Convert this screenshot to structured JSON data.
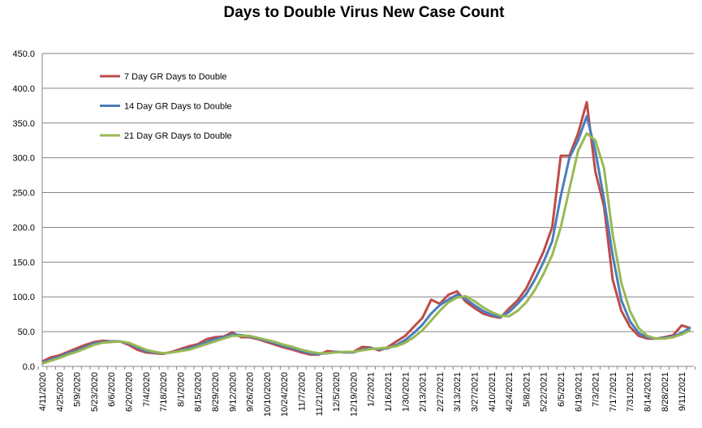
{
  "chart_data": {
    "type": "line",
    "title": "Days to Double Virus New Case Count",
    "xlabel": "",
    "ylabel": "",
    "ylim": [
      0,
      450
    ],
    "yticks": [
      "0.0",
      "50.0",
      "100.0",
      "150.0",
      "200.0",
      "250.0",
      "300.0",
      "350.0",
      "400.0",
      "450.0"
    ],
    "grid": true,
    "legend": "top-left",
    "x_tick_labels": [
      "4/11/2020",
      "4/25/2020",
      "5/9/2020",
      "5/23/2020",
      "6/6/2020",
      "6/20/2020",
      "7/4/2020",
      "7/18/2020",
      "8/1/2020",
      "8/15/2020",
      "8/29/2020",
      "9/12/2020",
      "9/26/2020",
      "10/10/2020",
      "10/24/2020",
      "11/7/2020",
      "11/21/2020",
      "12/5/2020",
      "12/19/2020",
      "1/2/2021",
      "1/16/2021",
      "1/30/2021",
      "2/13/2021",
      "2/27/2021",
      "3/13/2021",
      "3/27/2021",
      "4/10/2021",
      "4/24/2021",
      "5/8/2021",
      "5/22/2021",
      "6/5/2021",
      "6/19/2021",
      "7/3/2021",
      "7/17/2021",
      "7/31/2021",
      "8/14/2021",
      "8/28/2021",
      "9/11/2021"
    ],
    "series": [
      {
        "name": "7 Day GR Days to Double",
        "color": "#be4b48",
        "values": [
          7,
          13,
          16,
          21,
          26,
          31,
          35,
          37,
          36,
          36,
          31,
          24,
          20,
          19,
          18,
          21,
          25,
          29,
          32,
          39,
          42,
          43,
          49,
          42,
          42,
          39,
          35,
          31,
          27,
          24,
          20,
          17,
          17,
          22,
          21,
          20,
          21,
          28,
          27,
          23,
          28,
          36,
          44,
          57,
          70,
          96,
          90,
          103,
          108,
          93,
          84,
          76,
          72,
          70,
          83,
          95,
          112,
          138,
          165,
          200,
          303,
          303,
          335,
          380,
          280,
          230,
          125,
          80,
          57,
          44,
          40,
          40,
          42,
          45,
          59,
          55
        ]
      },
      {
        "name": "14 Day GR Days to Double",
        "color": "#4a7ebb",
        "values": [
          5,
          10,
          14,
          19,
          23,
          28,
          33,
          35,
          36,
          36,
          33,
          27,
          22,
          20,
          19,
          20,
          23,
          26,
          30,
          35,
          39,
          42,
          46,
          45,
          43,
          40,
          37,
          33,
          29,
          26,
          22,
          19,
          18,
          19,
          21,
          20,
          20,
          24,
          26,
          25,
          26,
          31,
          38,
          48,
          60,
          76,
          88,
          96,
          103,
          97,
          88,
          80,
          74,
          71,
          78,
          90,
          104,
          125,
          150,
          180,
          245,
          300,
          325,
          360,
          310,
          240,
          160,
          95,
          65,
          48,
          42,
          40,
          41,
          43,
          48,
          56
        ]
      },
      {
        "name": "21 Day GR Days to Double",
        "color": "#98b954",
        "values": [
          4,
          8,
          12,
          17,
          21,
          26,
          31,
          34,
          35,
          36,
          34,
          29,
          24,
          21,
          19,
          20,
          22,
          24,
          28,
          32,
          36,
          40,
          44,
          44,
          44,
          41,
          38,
          35,
          31,
          28,
          24,
          21,
          19,
          19,
          20,
          21,
          21,
          23,
          25,
          26,
          27,
          29,
          34,
          42,
          52,
          66,
          80,
          92,
          99,
          101,
          94,
          85,
          78,
          73,
          72,
          80,
          92,
          110,
          133,
          160,
          200,
          255,
          310,
          335,
          325,
          285,
          190,
          120,
          80,
          55,
          44,
          40,
          40,
          42,
          46,
          52
        ]
      }
    ]
  }
}
